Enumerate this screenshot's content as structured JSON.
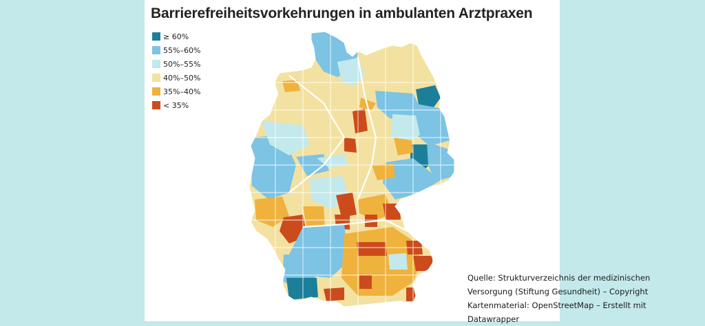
{
  "title": "Barrierefreiheitsvorkehrungen in ambulanten Arztpraxen",
  "legend": [
    {
      "label": "≥ 60%",
      "color": "#1c7f9a"
    },
    {
      "label": "55%–60%",
      "color": "#7cc3e4"
    },
    {
      "label": "50%–55%",
      "color": "#c3e9ec"
    },
    {
      "label": "40%–50%",
      "color": "#f3e1a1"
    },
    {
      "label": "35%–40%",
      "color": "#eeb23d"
    },
    {
      "label": "< 35%",
      "color": "#cc4b1c"
    }
  ],
  "map": {
    "region": "Germany (districts)",
    "colors": {
      "border": "#ffffff",
      "state_border": "#ffffff"
    }
  },
  "source": "Quelle: Strukturverzeichnis der medizinischen Versorgung (Stiftung Gesundheit) – Copyright Kartenmaterial: OpenStreetMap – Erstellt mit Datawrapper"
}
